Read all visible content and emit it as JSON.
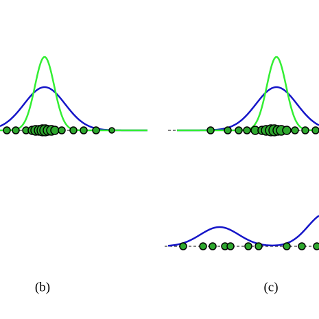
{
  "panels": [
    {
      "label": "(b)"
    },
    {
      "label": "(c)"
    }
  ]
}
